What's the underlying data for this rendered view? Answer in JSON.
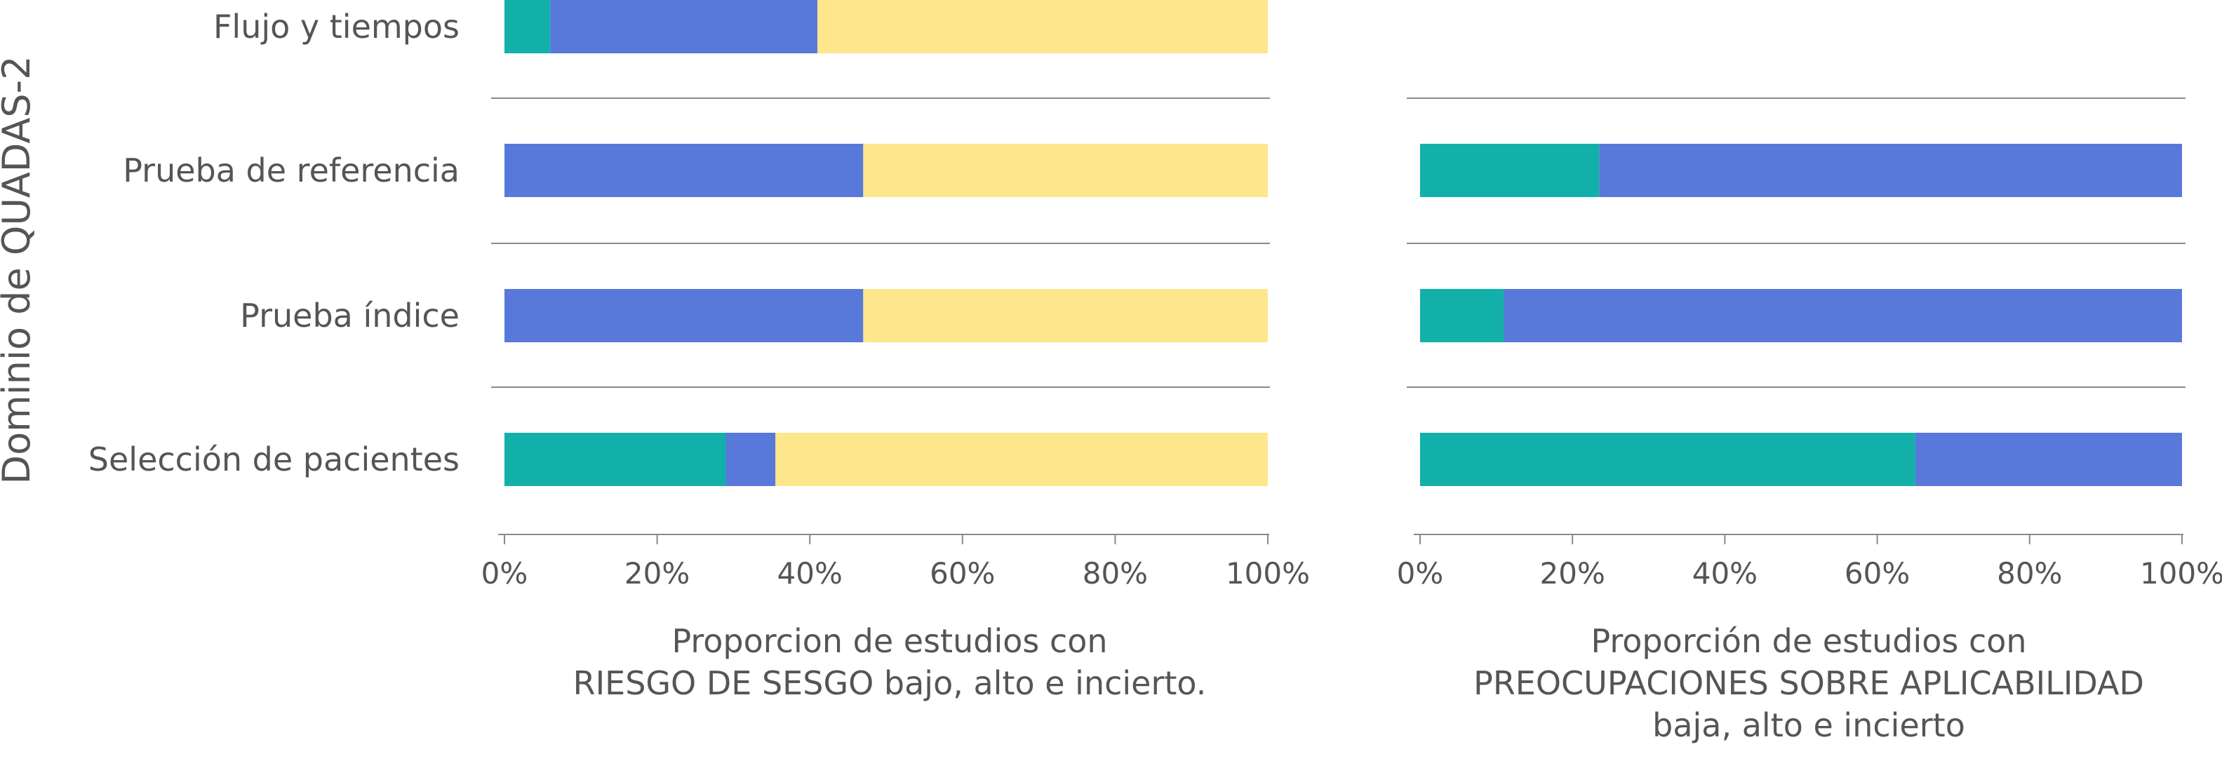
{
  "y_axis_title": "Dominio de QUADAS-2",
  "colors": {
    "low": "#13b0aa",
    "high": "#5878da",
    "unclear": "#fde68b"
  },
  "chart_data": [
    {
      "type": "bar",
      "orientation": "horizontal",
      "stacked": true,
      "categories": [
        "Flujo y tiempos",
        "Prueba de referencia",
        "Prueba índice",
        "Selección de pacientes"
      ],
      "series": [
        {
          "color": "#13b0aa",
          "values": [
            6,
            0,
            0,
            29
          ]
        },
        {
          "color": "#5878da",
          "values": [
            35,
            47,
            47,
            6.5
          ]
        },
        {
          "color": "#fde68b",
          "values": [
            59,
            53,
            53,
            64.5
          ]
        }
      ],
      "x_ticks": [
        "0%",
        "20%",
        "40%",
        "60%",
        "80%",
        "100%"
      ],
      "xlim": [
        0,
        100
      ],
      "xlabel_lines": [
        "Proporcion de estudios con",
        "RIESGO DE SESGO bajo, alto e incierto."
      ]
    },
    {
      "type": "bar",
      "orientation": "horizontal",
      "stacked": true,
      "categories": [
        "Prueba de referencia",
        "Prueba índice",
        "Selección de pacientes"
      ],
      "series": [
        {
          "color": "#13b0aa",
          "values": [
            23.5,
            11,
            65
          ]
        },
        {
          "color": "#5878da",
          "values": [
            76.5,
            89,
            35
          ]
        }
      ],
      "x_ticks": [
        "0%",
        "20%",
        "40%",
        "60%",
        "80%",
        "100%"
      ],
      "xlim": [
        0,
        100
      ],
      "xlabel_lines": [
        "Proporción de estudios con",
        "PREOCUPACIONES SOBRE APLICABILIDAD",
        "baja, alto e incierto"
      ]
    }
  ]
}
